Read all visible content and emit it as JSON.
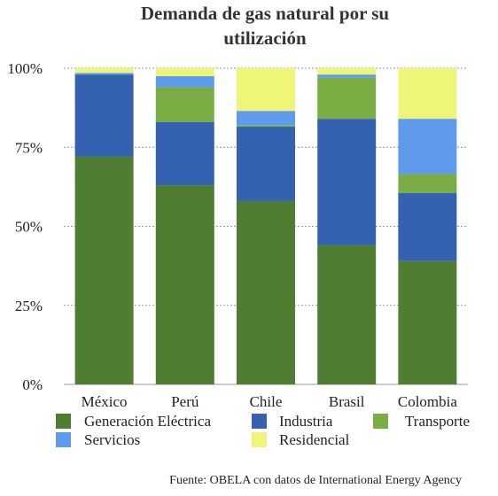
{
  "chart_data": {
    "type": "bar",
    "stacked": true,
    "title": "Demanda de gas natural por su utilización",
    "title_lines": [
      "Demanda de gas natural por su",
      "utilización"
    ],
    "categories": [
      "México",
      "Perú",
      "Chile",
      "Brasil",
      "Colombia"
    ],
    "ylim": [
      0,
      100
    ],
    "yticks": [
      0,
      25,
      50,
      75,
      100
    ],
    "ytick_labels": [
      "0%",
      "25%",
      "50%",
      "75%",
      "100%"
    ],
    "grid": true,
    "legend_position": "bottom",
    "series": [
      {
        "name": "Generación Eléctrica",
        "color": "#4f7d31",
        "values": [
          72,
          63,
          58,
          44,
          39
        ]
      },
      {
        "name": "Industria",
        "color": "#3462b0",
        "values": [
          26,
          20,
          23.5,
          40,
          21.5
        ]
      },
      {
        "name": "Transporte",
        "color": "#7aae45",
        "values": [
          0,
          11,
          0.5,
          13,
          6
        ]
      },
      {
        "name": "Servicios",
        "color": "#5f9bec",
        "values": [
          0.5,
          3.5,
          4.5,
          1,
          17.5
        ]
      },
      {
        "name": "Residencial",
        "color": "#eef577",
        "values": [
          1.5,
          2.5,
          13.5,
          2,
          16
        ]
      }
    ],
    "source": "Fuente: OBELA con datos de International Energy Agency"
  }
}
